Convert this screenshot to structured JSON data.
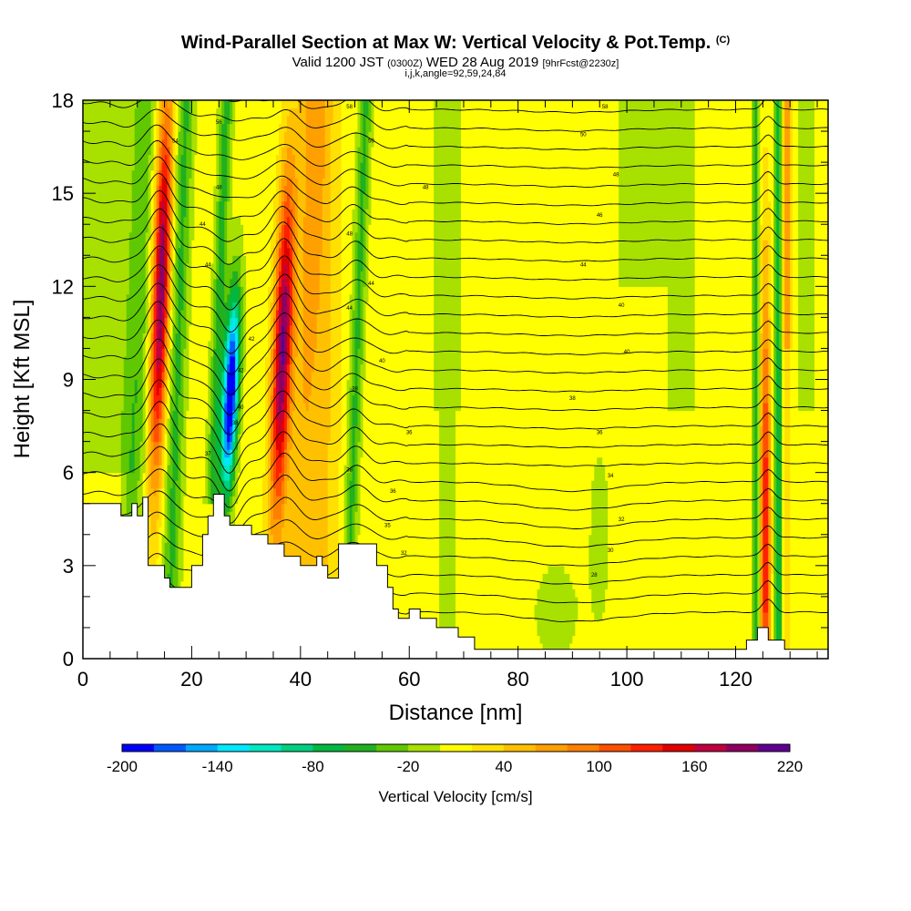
{
  "header": {
    "title": "Wind-Parallel Section at Max W: Vertical Velocity & Pot.Temp.",
    "copyright": "(C)",
    "valid_prefix": "Valid 1200 JST",
    "valid_utc": "(0300Z)",
    "valid_date": "WED 28 Aug 2019",
    "forecast": "[9hrFcst@2230z]",
    "indices": "i,j,k,angle=92,59,24,84"
  },
  "chart_data": {
    "type": "heatmap",
    "xlabel": "Distance [nm]",
    "ylabel": "Height [Kft MSL]",
    "xlim": [
      0,
      137
    ],
    "ylim": [
      0,
      18
    ],
    "x_ticks": [
      0,
      20,
      40,
      60,
      80,
      100,
      120
    ],
    "x_minor_step": 5,
    "y_ticks": [
      0,
      3,
      6,
      9,
      12,
      15,
      18
    ],
    "y_minor_step": 1,
    "colorbar": {
      "label": "Vertical Velocity [cm/s]",
      "min": -200,
      "max": 220,
      "step": 20,
      "tick_labels": [
        -200,
        -140,
        -80,
        -20,
        40,
        100,
        160,
        220
      ],
      "colors": [
        "#0000ff",
        "#0058ff",
        "#00a8ff",
        "#00e8ff",
        "#00e8c0",
        "#00d080",
        "#00b840",
        "#20b020",
        "#60c800",
        "#a8e000",
        "#ffff00",
        "#ffe000",
        "#ffc000",
        "#ffa000",
        "#ff8000",
        "#ff5000",
        "#ff2000",
        "#e00000",
        "#c00040",
        "#900060",
        "#600090"
      ]
    },
    "velocity_features": [
      {
        "center_x": 14,
        "center_y": 12,
        "peak": 180
      },
      {
        "center_x": 27,
        "center_y": 8.5,
        "peak": -200
      },
      {
        "center_x": 36,
        "center_y": 10,
        "peak": 170
      },
      {
        "center_x": 50,
        "center_y": 8,
        "peak": -40
      },
      {
        "center_x": 126,
        "center_y": 4,
        "peak": 120
      }
    ],
    "terrain_top_kft": [
      [
        0,
        5
      ],
      [
        7,
        5
      ],
      [
        7,
        4.6
      ],
      [
        9,
        4.6
      ],
      [
        9,
        5
      ],
      [
        10,
        5
      ],
      [
        10,
        4.6
      ],
      [
        11,
        4.6
      ],
      [
        11,
        5.2
      ],
      [
        12,
        5.2
      ],
      [
        12,
        3
      ],
      [
        15,
        3
      ],
      [
        15,
        2.6
      ],
      [
        16,
        2.6
      ],
      [
        16,
        2.3
      ],
      [
        20,
        2.3
      ],
      [
        20,
        3
      ],
      [
        22,
        3
      ],
      [
        22,
        4
      ],
      [
        23,
        4
      ],
      [
        23,
        4.6
      ],
      [
        24,
        4.6
      ],
      [
        24,
        5.3
      ],
      [
        26,
        5.3
      ],
      [
        26,
        4.6
      ],
      [
        27,
        4.6
      ],
      [
        27,
        4.3
      ],
      [
        31,
        4.3
      ],
      [
        31,
        4
      ],
      [
        34,
        4
      ],
      [
        34,
        3.7
      ],
      [
        37,
        3.7
      ],
      [
        37,
        3.3
      ],
      [
        40,
        3.3
      ],
      [
        40,
        3
      ],
      [
        43,
        3
      ],
      [
        43,
        3.3
      ],
      [
        44,
        3.3
      ],
      [
        44,
        3
      ],
      [
        45,
        3
      ],
      [
        45,
        2.6
      ],
      [
        47,
        2.6
      ],
      [
        47,
        3.7
      ],
      [
        54,
        3.7
      ],
      [
        54,
        3
      ],
      [
        56,
        3
      ],
      [
        56,
        2.3
      ],
      [
        57,
        2.3
      ],
      [
        57,
        1.6
      ],
      [
        58,
        1.6
      ],
      [
        58,
        1.3
      ],
      [
        60,
        1.3
      ],
      [
        60,
        1.6
      ],
      [
        62,
        1.6
      ],
      [
        62,
        1.3
      ],
      [
        65,
        1.3
      ],
      [
        65,
        1
      ],
      [
        69,
        1
      ],
      [
        69,
        0.7
      ],
      [
        72,
        0.7
      ],
      [
        72,
        0.3
      ],
      [
        122,
        0.3
      ],
      [
        122,
        0.6
      ],
      [
        124,
        0.6
      ],
      [
        124,
        1
      ],
      [
        126,
        1
      ],
      [
        126,
        0.6
      ],
      [
        129,
        0.6
      ],
      [
        129,
        0.3
      ],
      [
        137,
        0.3
      ],
      [
        137,
        0
      ]
    ],
    "isentrope_labels": [
      {
        "x": 49,
        "y": 17.8,
        "value": "58"
      },
      {
        "x": 96,
        "y": 17.8,
        "value": "58"
      },
      {
        "x": 25,
        "y": 17.3,
        "value": "56"
      },
      {
        "x": 53,
        "y": 16.7,
        "value": "50"
      },
      {
        "x": 92,
        "y": 16.9,
        "value": "50"
      },
      {
        "x": 17,
        "y": 16.7,
        "value": "54"
      },
      {
        "x": 98,
        "y": 15.6,
        "value": "48"
      },
      {
        "x": 25,
        "y": 15.2,
        "value": "48"
      },
      {
        "x": 63,
        "y": 15.2,
        "value": "48"
      },
      {
        "x": 22,
        "y": 14.0,
        "value": "44"
      },
      {
        "x": 95,
        "y": 14.3,
        "value": "46"
      },
      {
        "x": 49,
        "y": 13.7,
        "value": "48"
      },
      {
        "x": 23,
        "y": 12.7,
        "value": "44"
      },
      {
        "x": 92,
        "y": 12.7,
        "value": "44"
      },
      {
        "x": 53,
        "y": 12.1,
        "value": "44"
      },
      {
        "x": 49,
        "y": 11.3,
        "value": "44"
      },
      {
        "x": 99,
        "y": 11.4,
        "value": "40"
      },
      {
        "x": 31,
        "y": 10.3,
        "value": "42"
      },
      {
        "x": 100,
        "y": 9.9,
        "value": "40"
      },
      {
        "x": 55,
        "y": 9.6,
        "value": "40"
      },
      {
        "x": 29,
        "y": 9.3,
        "value": "42"
      },
      {
        "x": 50,
        "y": 8.7,
        "value": "38"
      },
      {
        "x": 90,
        "y": 8.4,
        "value": "38"
      },
      {
        "x": 29,
        "y": 8.1,
        "value": "40"
      },
      {
        "x": 28,
        "y": 7.6,
        "value": "38"
      },
      {
        "x": 60,
        "y": 7.3,
        "value": "36"
      },
      {
        "x": 95,
        "y": 7.3,
        "value": "36"
      },
      {
        "x": 23,
        "y": 6.6,
        "value": "37"
      },
      {
        "x": 97,
        "y": 5.9,
        "value": "34"
      },
      {
        "x": 49,
        "y": 6.1,
        "value": "38"
      },
      {
        "x": 57,
        "y": 5.4,
        "value": "36"
      },
      {
        "x": 99,
        "y": 4.5,
        "value": "32"
      },
      {
        "x": 56,
        "y": 4.3,
        "value": "35"
      },
      {
        "x": 97,
        "y": 3.5,
        "value": "30"
      },
      {
        "x": 59,
        "y": 3.4,
        "value": "32"
      },
      {
        "x": 94,
        "y": 2.7,
        "value": "28"
      }
    ]
  }
}
